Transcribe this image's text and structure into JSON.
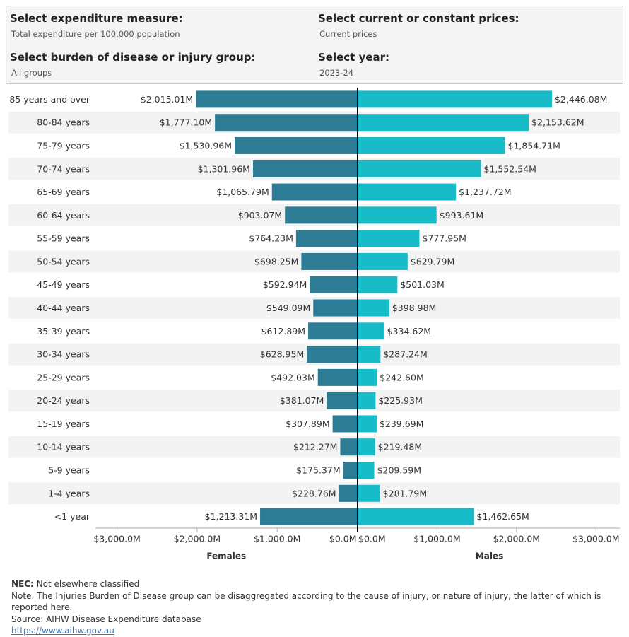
{
  "filters": [
    {
      "label": "Select expenditure measure:",
      "value": "Total expenditure per 100,000 population"
    },
    {
      "label": "Select current or constant prices:",
      "value": "Current prices"
    },
    {
      "label": "Select burden of disease or injury group:",
      "value": "All groups"
    },
    {
      "label": "Select year:",
      "value": "2023-24"
    }
  ],
  "chart_data": {
    "type": "pyramid",
    "categories": [
      "85 years and over",
      "80-84 years",
      "75-79 years",
      "70-74 years",
      "65-69 years",
      "60-64 years",
      "55-59 years",
      "50-54 years",
      "45-49 years",
      "40-44 years",
      "35-39 years",
      "30-34 years",
      "25-29 years",
      "20-24 years",
      "15-19 years",
      "10-14 years",
      "5-9 years",
      "1-4 years",
      "<1 year"
    ],
    "axes": [
      {
        "label": "Females",
        "xlim": [
          3270,
          0
        ],
        "xticks": [
          {
            "value": 3000,
            "label": "$3,000.0M"
          },
          {
            "value": 2000,
            "label": "$2,000.0M"
          },
          {
            "value": 1000,
            "label": "$1,000.0M"
          },
          {
            "value": 0,
            "label": "$0.0M"
          }
        ]
      },
      {
        "label": "Males",
        "xlim": [
          0,
          3300
        ],
        "xticks": [
          {
            "value": 0,
            "label": "$0.0M"
          },
          {
            "value": 1000,
            "label": "$1,000.0M"
          },
          {
            "value": 2000,
            "label": "$2,000.0M"
          },
          {
            "value": 3000,
            "label": "$3,000.0M"
          }
        ]
      }
    ],
    "series": [
      {
        "name": "Females",
        "axis": 0,
        "color": "#2c7c95",
        "values": [
          2015.01,
          1777.1,
          1530.96,
          1301.96,
          1065.79,
          903.07,
          764.23,
          698.25,
          592.94,
          549.09,
          612.89,
          628.95,
          492.03,
          381.07,
          307.89,
          212.27,
          175.37,
          228.76,
          1213.31
        ],
        "value_labels": [
          "$2,015.01M",
          "$1,777.10M",
          "$1,530.96M",
          "$1,301.96M",
          "$1,065.79M",
          "$903.07M",
          "$764.23M",
          "$698.25M",
          "$592.94M",
          "$549.09M",
          "$612.89M",
          "$628.95M",
          "$492.03M",
          "$381.07M",
          "$307.89M",
          "$212.27M",
          "$175.37M",
          "$228.76M",
          "$1,213.31M"
        ]
      },
      {
        "name": "Males",
        "axis": 1,
        "color": "#18bcc8",
        "values": [
          2446.08,
          2153.62,
          1854.71,
          1552.54,
          1237.72,
          993.61,
          777.95,
          629.79,
          501.03,
          398.98,
          334.62,
          287.24,
          242.6,
          225.93,
          239.69,
          219.48,
          209.59,
          281.79,
          1462.65
        ],
        "value_labels": [
          "$2,446.08M",
          "$2,153.62M",
          "$1,854.71M",
          "$1,552.54M",
          "$1,237.72M",
          "$993.61M",
          "$777.95M",
          "$629.79M",
          "$501.03M",
          "$398.98M",
          "$334.62M",
          "$287.24M",
          "$242.60M",
          "$225.93M",
          "$239.69M",
          "$219.48M",
          "$209.59M",
          "$281.79M",
          "$1,462.65M"
        ]
      }
    ]
  },
  "notes": {
    "nec_term": "NEC:",
    "nec_text": "Not elsewhere classified",
    "note": "Note: The Injuries Burden of Disease group can be disaggregated according to the cause of injury, or nature of injury, the latter of which is reported here.",
    "source": "Source: AIHW Disease Expenditure database",
    "link": "https://www.aihw.gov.au"
  }
}
